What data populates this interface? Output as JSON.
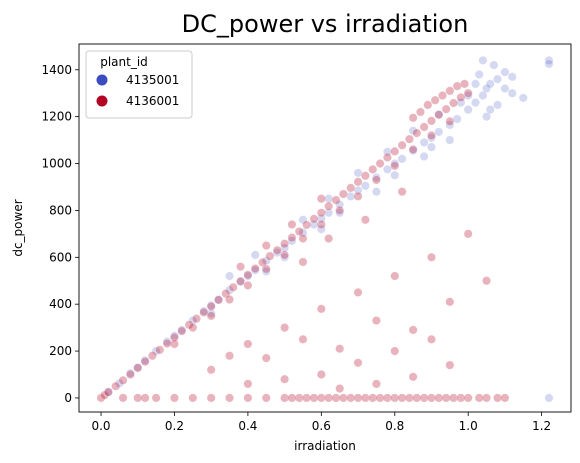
{
  "chart_data": {
    "type": "scatter",
    "title": "DC_power vs irradiation",
    "xlabel": "irradiation",
    "ylabel": "dc_power",
    "xlim": [
      -0.06,
      1.28
    ],
    "ylim": [
      -60,
      1510
    ],
    "xticks": [
      0.0,
      0.2,
      0.4,
      0.6,
      0.8,
      1.0,
      1.2
    ],
    "xtick_labels": [
      "0.0",
      "0.2",
      "0.4",
      "0.6",
      "0.8",
      "1.0",
      "1.2"
    ],
    "yticks": [
      0,
      200,
      400,
      600,
      800,
      1000,
      1200,
      1400
    ],
    "ytick_labels": [
      "0",
      "200",
      "400",
      "600",
      "800",
      "1000",
      "1200",
      "1400"
    ],
    "grid": false,
    "legend": {
      "title": "plant_id",
      "placement": "top-left",
      "entries": [
        "4135001",
        "4136001"
      ]
    },
    "series": [
      {
        "name": "4135001",
        "color": "#3b4cc0",
        "points": [
          [
            0.02,
            25
          ],
          [
            0.05,
            62
          ],
          [
            0.08,
            105
          ],
          [
            0.1,
            130
          ],
          [
            0.12,
            160
          ],
          [
            0.15,
            200
          ],
          [
            0.18,
            240
          ],
          [
            0.2,
            265
          ],
          [
            0.22,
            290
          ],
          [
            0.25,
            330
          ],
          [
            0.28,
            370
          ],
          [
            0.3,
            395
          ],
          [
            0.32,
            420
          ],
          [
            0.35,
            460
          ],
          [
            0.38,
            495
          ],
          [
            0.4,
            520
          ],
          [
            0.42,
            545
          ],
          [
            0.45,
            585
          ],
          [
            0.48,
            620
          ],
          [
            0.5,
            640
          ],
          [
            0.52,
            670
          ],
          [
            0.55,
            705
          ],
          [
            0.58,
            740
          ],
          [
            0.6,
            765
          ],
          [
            0.62,
            790
          ],
          [
            0.65,
            825
          ],
          [
            0.68,
            860
          ],
          [
            0.7,
            885
          ],
          [
            0.72,
            905
          ],
          [
            0.75,
            940
          ],
          [
            0.78,
            975
          ],
          [
            0.8,
            1000
          ],
          [
            0.82,
            1020
          ],
          [
            0.85,
            1055
          ],
          [
            0.88,
            1090
          ],
          [
            0.9,
            1110
          ],
          [
            0.92,
            1135
          ],
          [
            0.95,
            1165
          ],
          [
            0.97,
            1190
          ],
          [
            1.0,
            1230
          ],
          [
            1.02,
            1260
          ],
          [
            1.04,
            1290
          ],
          [
            1.05,
            1320
          ],
          [
            1.06,
            1340
          ],
          [
            1.08,
            1360
          ],
          [
            1.1,
            1320
          ],
          [
            1.12,
            1300
          ],
          [
            1.15,
            1280
          ],
          [
            1.22,
            1440
          ],
          [
            1.22,
            1425
          ],
          [
            0.35,
            520
          ],
          [
            0.42,
            610
          ],
          [
            0.55,
            760
          ],
          [
            0.62,
            850
          ],
          [
            0.7,
            960
          ],
          [
            0.78,
            1050
          ],
          [
            0.85,
            1140
          ],
          [
            0.92,
            1210
          ],
          [
            0.98,
            1260
          ],
          [
            1.03,
            1380
          ],
          [
            0.3,
            360
          ],
          [
            0.45,
            540
          ],
          [
            0.6,
            720
          ],
          [
            0.75,
            880
          ],
          [
            0.88,
            1030
          ],
          [
            0.95,
            1100
          ],
          [
            1.05,
            1200
          ],
          [
            1.07,
            1420
          ],
          [
            1.04,
            1440
          ],
          [
            1.08,
            1250
          ],
          [
            0.5,
            600
          ],
          [
            0.65,
            790
          ],
          [
            0.8,
            950
          ],
          [
            0.9,
            1070
          ],
          [
            1.0,
            1290
          ],
          [
            1.02,
            1340
          ],
          [
            1.06,
            1230
          ],
          [
            1.1,
            1390
          ],
          [
            1.12,
            1370
          ],
          [
            1.22,
            0
          ]
        ]
      },
      {
        "name": "4136001",
        "color": "#b40426",
        "points": [
          [
            0.0,
            0
          ],
          [
            0.01,
            12
          ],
          [
            0.02,
            25
          ],
          [
            0.04,
            50
          ],
          [
            0.06,
            75
          ],
          [
            0.08,
            100
          ],
          [
            0.1,
            128
          ],
          [
            0.12,
            155
          ],
          [
            0.14,
            180
          ],
          [
            0.16,
            205
          ],
          [
            0.18,
            232
          ],
          [
            0.2,
            258
          ],
          [
            0.22,
            285
          ],
          [
            0.24,
            312
          ],
          [
            0.26,
            338
          ],
          [
            0.28,
            365
          ],
          [
            0.3,
            390
          ],
          [
            0.32,
            418
          ],
          [
            0.34,
            445
          ],
          [
            0.36,
            472
          ],
          [
            0.38,
            498
          ],
          [
            0.4,
            525
          ],
          [
            0.42,
            552
          ],
          [
            0.44,
            578
          ],
          [
            0.46,
            605
          ],
          [
            0.48,
            630
          ],
          [
            0.5,
            658
          ],
          [
            0.52,
            684
          ],
          [
            0.54,
            710
          ],
          [
            0.56,
            738
          ],
          [
            0.58,
            764
          ],
          [
            0.6,
            790
          ],
          [
            0.62,
            818
          ],
          [
            0.64,
            844
          ],
          [
            0.66,
            870
          ],
          [
            0.68,
            896
          ],
          [
            0.7,
            922
          ],
          [
            0.72,
            948
          ],
          [
            0.74,
            975
          ],
          [
            0.76,
            1000
          ],
          [
            0.78,
            1026
          ],
          [
            0.8,
            1052
          ],
          [
            0.82,
            1078
          ],
          [
            0.84,
            1104
          ],
          [
            0.86,
            1130
          ],
          [
            0.88,
            1156
          ],
          [
            0.9,
            1182
          ],
          [
            0.92,
            1208
          ],
          [
            0.94,
            1232
          ],
          [
            0.96,
            1258
          ],
          [
            0.98,
            1282
          ],
          [
            1.0,
            1300
          ],
          [
            0.97,
            1330
          ],
          [
            0.99,
            1340
          ],
          [
            0.95,
            1310
          ],
          [
            0.93,
            1290
          ],
          [
            0.91,
            1270
          ],
          [
            0.89,
            1250
          ],
          [
            0.87,
            1220
          ],
          [
            0.85,
            1195
          ],
          [
            0.2,
            230
          ],
          [
            0.25,
            300
          ],
          [
            0.3,
            350
          ],
          [
            0.35,
            420
          ],
          [
            0.4,
            480
          ],
          [
            0.45,
            550
          ],
          [
            0.5,
            610
          ],
          [
            0.55,
            680
          ],
          [
            0.6,
            740
          ],
          [
            0.65,
            800
          ],
          [
            0.7,
            860
          ],
          [
            0.75,
            930
          ],
          [
            0.8,
            990
          ],
          [
            0.85,
            1060
          ],
          [
            0.9,
            1120
          ],
          [
            0.95,
            1180
          ],
          [
            0.38,
            560
          ],
          [
            0.45,
            650
          ],
          [
            0.52,
            740
          ],
          [
            0.6,
            850
          ],
          [
            0.3,
            120
          ],
          [
            0.35,
            180
          ],
          [
            0.4,
            230
          ],
          [
            0.45,
            170
          ],
          [
            0.5,
            300
          ],
          [
            0.55,
            250
          ],
          [
            0.6,
            380
          ],
          [
            0.65,
            210
          ],
          [
            0.7,
            450
          ],
          [
            0.75,
            330
          ],
          [
            0.8,
            520
          ],
          [
            0.85,
            290
          ],
          [
            0.9,
            600
          ],
          [
            0.95,
            410
          ],
          [
            1.0,
            700
          ],
          [
            0.6,
            100
          ],
          [
            0.7,
            150
          ],
          [
            0.8,
            200
          ],
          [
            0.9,
            250
          ],
          [
            1.05,
            500
          ],
          [
            0.4,
            60
          ],
          [
            0.5,
            80
          ],
          [
            0.65,
            40
          ],
          [
            0.75,
            60
          ],
          [
            0.85,
            90
          ],
          [
            0.95,
            140
          ],
          [
            0.55,
            580
          ],
          [
            0.62,
            680
          ],
          [
            0.72,
            760
          ],
          [
            0.82,
            880
          ],
          [
            0.1,
            0
          ],
          [
            0.15,
            0
          ],
          [
            0.2,
            0
          ],
          [
            0.25,
            0
          ],
          [
            0.3,
            0
          ],
          [
            0.35,
            0
          ],
          [
            0.4,
            0
          ],
          [
            0.45,
            0
          ],
          [
            0.5,
            0
          ],
          [
            0.52,
            0
          ],
          [
            0.54,
            0
          ],
          [
            0.56,
            0
          ],
          [
            0.58,
            0
          ],
          [
            0.6,
            0
          ],
          [
            0.62,
            0
          ],
          [
            0.64,
            0
          ],
          [
            0.66,
            0
          ],
          [
            0.68,
            0
          ],
          [
            0.7,
            0
          ],
          [
            0.72,
            0
          ],
          [
            0.74,
            0
          ],
          [
            0.76,
            0
          ],
          [
            0.78,
            0
          ],
          [
            0.8,
            0
          ],
          [
            0.82,
            0
          ],
          [
            0.84,
            0
          ],
          [
            0.86,
            0
          ],
          [
            0.88,
            0
          ],
          [
            0.9,
            0
          ],
          [
            0.92,
            0
          ],
          [
            0.94,
            0
          ],
          [
            0.96,
            0
          ],
          [
            1.0,
            0
          ],
          [
            1.03,
            0
          ],
          [
            1.05,
            0
          ],
          [
            1.08,
            0
          ],
          [
            1.1,
            0
          ],
          [
            0.98,
            0
          ],
          [
            0.06,
            0
          ],
          [
            0.12,
            0
          ]
        ]
      }
    ]
  }
}
